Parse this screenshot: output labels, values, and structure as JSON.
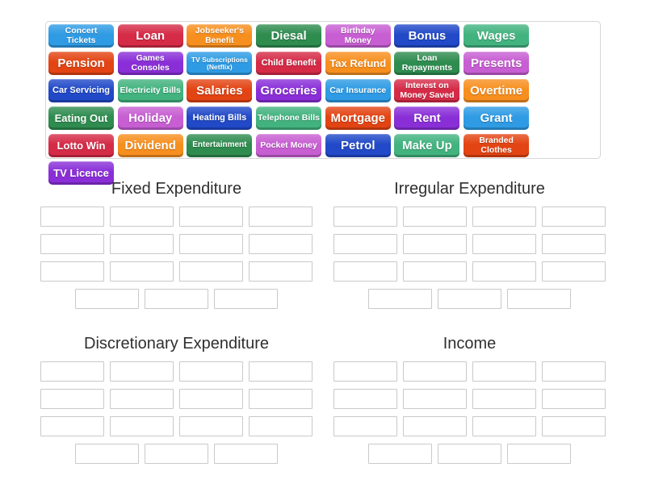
{
  "tray": {
    "tiles": [
      {
        "label": "Concert Tickets",
        "color": "#2e9be4",
        "size": "sm"
      },
      {
        "label": "Loan",
        "color": "#d52b47",
        "size": "lg"
      },
      {
        "label": "Jobseeker's Benefit",
        "color": "#f78f1f",
        "size": "sm"
      },
      {
        "label": "Diesal",
        "color": "#2e8c4f",
        "size": "lg"
      },
      {
        "label": "Birthday Money",
        "color": "#c75ed2",
        "size": "sm"
      },
      {
        "label": "Bonus",
        "color": "#2149c8",
        "size": "lg"
      },
      {
        "label": "Wages",
        "color": "#42b37f",
        "size": "lg"
      },
      {
        "label": "Pension",
        "color": "#e34413",
        "size": "lg"
      },
      {
        "label": "Games Consoles",
        "color": "#8a2fd8",
        "size": "sm"
      },
      {
        "label": "TV Subscriptions (Netflix)",
        "color": "#2e9be4",
        "size": "xs"
      },
      {
        "label": "Child Benefit",
        "color": "#d52b47",
        "size": "md"
      },
      {
        "label": "Tax Refund",
        "color": "#f78f1f",
        "size": "md2"
      },
      {
        "label": "Loan Repayments",
        "color": "#2e8c4f",
        "size": "sm"
      },
      {
        "label": "Presents",
        "color": "#c75ed2",
        "size": "lg"
      },
      {
        "label": "Car Servicing",
        "color": "#2149c8",
        "size": "md"
      },
      {
        "label": "Electricity Bills",
        "color": "#42b37f",
        "size": "sm"
      },
      {
        "label": "Salaries",
        "color": "#e34413",
        "size": "lg"
      },
      {
        "label": "Groceries",
        "color": "#8a2fd8",
        "size": "lg"
      },
      {
        "label": "Car Insurance",
        "color": "#2e9be4",
        "size": "sm"
      },
      {
        "label": "Interest on Money Saved",
        "color": "#d52b47",
        "size": "sm"
      },
      {
        "label": "Overtime",
        "color": "#f78f1f",
        "size": "lg"
      },
      {
        "label": "Eating Out",
        "color": "#2e8c4f",
        "size": "md2"
      },
      {
        "label": "Holiday",
        "color": "#c75ed2",
        "size": "lg"
      },
      {
        "label": "Heating Bills",
        "color": "#2149c8",
        "size": "md"
      },
      {
        "label": "Telephone Bills",
        "color": "#42b37f",
        "size": "sm"
      },
      {
        "label": "Mortgage",
        "color": "#e34413",
        "size": "lg"
      },
      {
        "label": "Rent",
        "color": "#8a2fd8",
        "size": "lg"
      },
      {
        "label": "Grant",
        "color": "#2e9be4",
        "size": "lg"
      },
      {
        "label": "Lotto Win",
        "color": "#d52b47",
        "size": "md2"
      },
      {
        "label": "Dividend",
        "color": "#f78f1f",
        "size": "lg"
      },
      {
        "label": "Entertainment",
        "color": "#2e8c4f",
        "size": "mds"
      },
      {
        "label": "Pocket Money",
        "color": "#c75ed2",
        "size": "sm"
      },
      {
        "label": "Petrol",
        "color": "#2149c8",
        "size": "lg"
      },
      {
        "label": "Make Up",
        "color": "#42b37f",
        "size": "lg"
      },
      {
        "label": "Branded Clothes",
        "color": "#e34413",
        "size": "sm"
      },
      {
        "label": "TV Licence",
        "color": "#8a2fd8",
        "size": "md2"
      }
    ]
  },
  "groups": [
    {
      "title": "Fixed Expenditure",
      "slot_rows": [
        4,
        4,
        4,
        3
      ]
    },
    {
      "title": "Irregular Expenditure",
      "slot_rows": [
        4,
        4,
        4,
        3
      ]
    },
    {
      "title": "Discretionary Expenditure",
      "slot_rows": [
        4,
        4,
        4,
        3
      ]
    },
    {
      "title": "Income",
      "slot_rows": [
        4,
        4,
        4,
        3
      ]
    }
  ]
}
